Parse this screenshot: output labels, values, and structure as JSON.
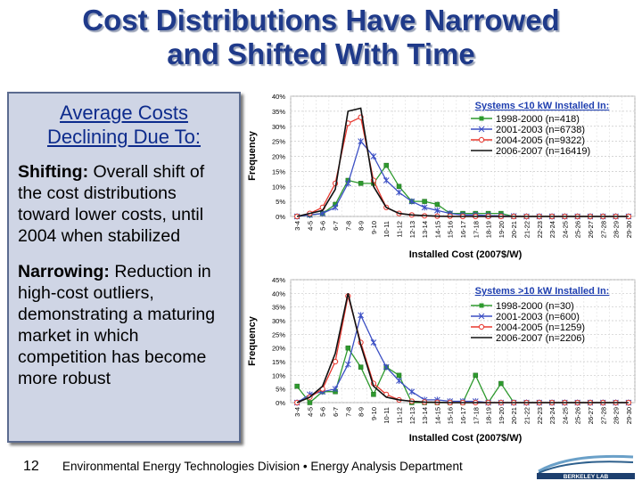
{
  "slide": {
    "title_line1": "Cost Distributions Have Narrowed",
    "title_line2": "and Shifted With Time",
    "panel_heading_line1": "Average Costs",
    "panel_heading_line2": "Declining Due To:",
    "point1_label": "Shifting:",
    "point1_text": " Overall shift of the cost distributions toward lower costs, until 2004 when stabilized",
    "point2_label": "Narrowing:",
    "point2_text": " Reduction in high-cost outliers, demonstrating a maturing market in which competition has become more robust",
    "page_number": "12",
    "footer_text": "Environmental Energy Technologies Division  •  Energy Analysis Department",
    "logo_text": "BERKELEY LAB"
  },
  "colors": {
    "title": "#1f3a8a",
    "series": [
      "#2e9a2e",
      "#3b4fc4",
      "#e8382f",
      "#111111"
    ]
  },
  "chart_data": [
    {
      "type": "line",
      "title": "Systems <10 kW Installed In:",
      "xlabel": "Installed Cost (2007$/W)",
      "ylabel": "Frequency",
      "categories": [
        "3-4",
        "4-5",
        "5-6",
        "6-7",
        "7-8",
        "8-9",
        "9-10",
        "10-11",
        "11-12",
        "12-13",
        "13-14",
        "14-15",
        "15-16",
        "16-17",
        "17-18",
        "18-19",
        "19-20",
        "20-21",
        "21-22",
        "22-23",
        "23-24",
        "24-25",
        "25-26",
        "26-27",
        "27-28",
        "28-29",
        "29-30"
      ],
      "yticks": [
        "0%",
        "5%",
        "10%",
        "15%",
        "20%",
        "25%",
        "30%",
        "35%",
        "40%"
      ],
      "ylim": [
        0,
        40
      ],
      "series": [
        {
          "name": "1998-2000 (n=418)",
          "marker": "square",
          "values": [
            0,
            0.5,
            1,
            4,
            12,
            11,
            11,
            17,
            10,
            5,
            5,
            4,
            1,
            1,
            1,
            1,
            1,
            0,
            0,
            0,
            0,
            0,
            0,
            0,
            0,
            0,
            0
          ]
        },
        {
          "name": "2001-2003 (n=6738)",
          "marker": "star",
          "values": [
            0,
            0.5,
            1,
            3,
            11,
            25,
            20,
            12,
            8,
            5,
            3,
            2,
            1,
            0.5,
            0.5,
            0.3,
            0.2,
            0.1,
            0,
            0,
            0,
            0,
            0,
            0,
            0,
            0,
            0
          ]
        },
        {
          "name": "2004-2005 (n=9322)",
          "marker": "circle",
          "values": [
            0,
            1,
            3,
            11,
            31,
            33,
            12,
            3,
            1,
            0.5,
            0.2,
            0.1,
            0.1,
            0,
            0,
            0,
            0,
            0,
            0,
            0,
            0,
            0,
            0,
            0,
            0,
            0,
            0
          ]
        },
        {
          "name": "2006-2007 (n=16419)",
          "marker": "none",
          "values": [
            0,
            1,
            2,
            9,
            35,
            36,
            10,
            3,
            1,
            0.5,
            0.3,
            0.1,
            0,
            0,
            0,
            0,
            0,
            0,
            0,
            0,
            0,
            0,
            0,
            0,
            0,
            0,
            0
          ]
        }
      ]
    },
    {
      "type": "line",
      "title": "Systems >10 kW Installed In:",
      "xlabel": "Installed Cost (2007$/W)",
      "ylabel": "Frequency",
      "categories": [
        "3-4",
        "4-5",
        "5-6",
        "6-7",
        "7-8",
        "8-9",
        "9-10",
        "10-11",
        "11-12",
        "12-13",
        "13-14",
        "14-15",
        "15-16",
        "16-17",
        "17-18",
        "18-19",
        "19-20",
        "20-21",
        "21-22",
        "22-23",
        "23-24",
        "24-25",
        "25-26",
        "26-27",
        "27-28",
        "28-29",
        "29-30"
      ],
      "yticks": [
        "0%",
        "5%",
        "10%",
        "15%",
        "20%",
        "25%",
        "30%",
        "35%",
        "40%",
        "45%"
      ],
      "ylim": [
        0,
        45
      ],
      "series": [
        {
          "name": "1998-2000 (n=30)",
          "marker": "square",
          "values": [
            6,
            0,
            4,
            4,
            20,
            13,
            3,
            13,
            10,
            0,
            0,
            0,
            0,
            0,
            10,
            0,
            7,
            0,
            0,
            0,
            0,
            0,
            0,
            0,
            0,
            0,
            0
          ]
        },
        {
          "name": "2001-2003 (n=600)",
          "marker": "star",
          "values": [
            0,
            3,
            4,
            5,
            14,
            32,
            22,
            13,
            8,
            4,
            1,
            1,
            0.5,
            0.5,
            0.5,
            0,
            0,
            0,
            0,
            0,
            0,
            0,
            0,
            0,
            0,
            0,
            0
          ]
        },
        {
          "name": "2004-2005 (n=1259)",
          "marker": "circle",
          "values": [
            0,
            2,
            5,
            15,
            39,
            22,
            7,
            3,
            1,
            0.5,
            0.2,
            0.1,
            0,
            0,
            0,
            0,
            0,
            0,
            0,
            0,
            0,
            0,
            0,
            0,
            0,
            0,
            0
          ]
        },
        {
          "name": "2006-2007 (n=2206)",
          "marker": "none",
          "values": [
            0,
            2,
            6,
            18,
            40,
            21,
            6,
            2,
            1,
            0.5,
            0.2,
            0.1,
            0,
            0,
            0,
            0,
            0,
            0,
            0,
            0,
            0,
            0,
            0,
            0,
            0,
            0,
            0
          ]
        }
      ]
    }
  ]
}
